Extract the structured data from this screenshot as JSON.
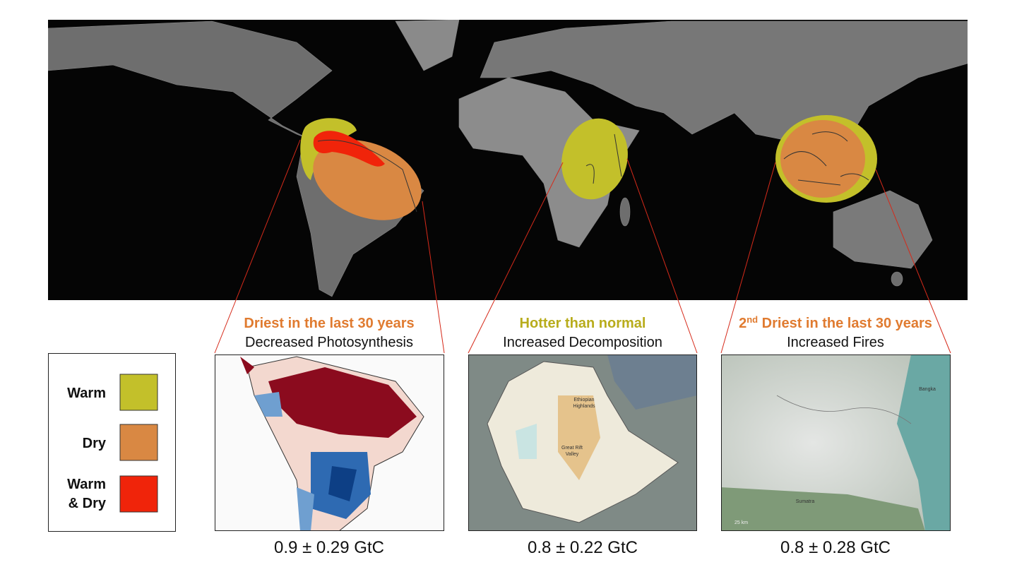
{
  "legend": {
    "items": [
      {
        "label": "Warm",
        "color": "#c3c02a"
      },
      {
        "label": "Dry",
        "color": "#d98843"
      },
      {
        "label": [
          "Warm",
          "& Dry"
        ],
        "color": "#f0240a"
      }
    ]
  },
  "panels": [
    {
      "headline": "Driest in the last 30 years",
      "subtitle": "Decreased Photosynthesis",
      "value": "0.9 ± 0.29 GtC"
    },
    {
      "headline": "Hotter than normal",
      "subtitle": "Increased Decomposition",
      "value": "0.8 ± 0.22 GtC",
      "map_labels": [
        [
          "Ethiopian",
          "Highlands"
        ],
        [
          "Great Rift",
          "Valley"
        ]
      ]
    },
    {
      "headline_number": "2",
      "headline_suffix": "nd",
      "headline": " Driest in the last 30 years",
      "subtitle": "Increased Fires",
      "value": "0.8 ± 0.28 GtC",
      "map_labels": [
        "Bangka",
        "Sumatra",
        "25 km"
      ]
    }
  ]
}
